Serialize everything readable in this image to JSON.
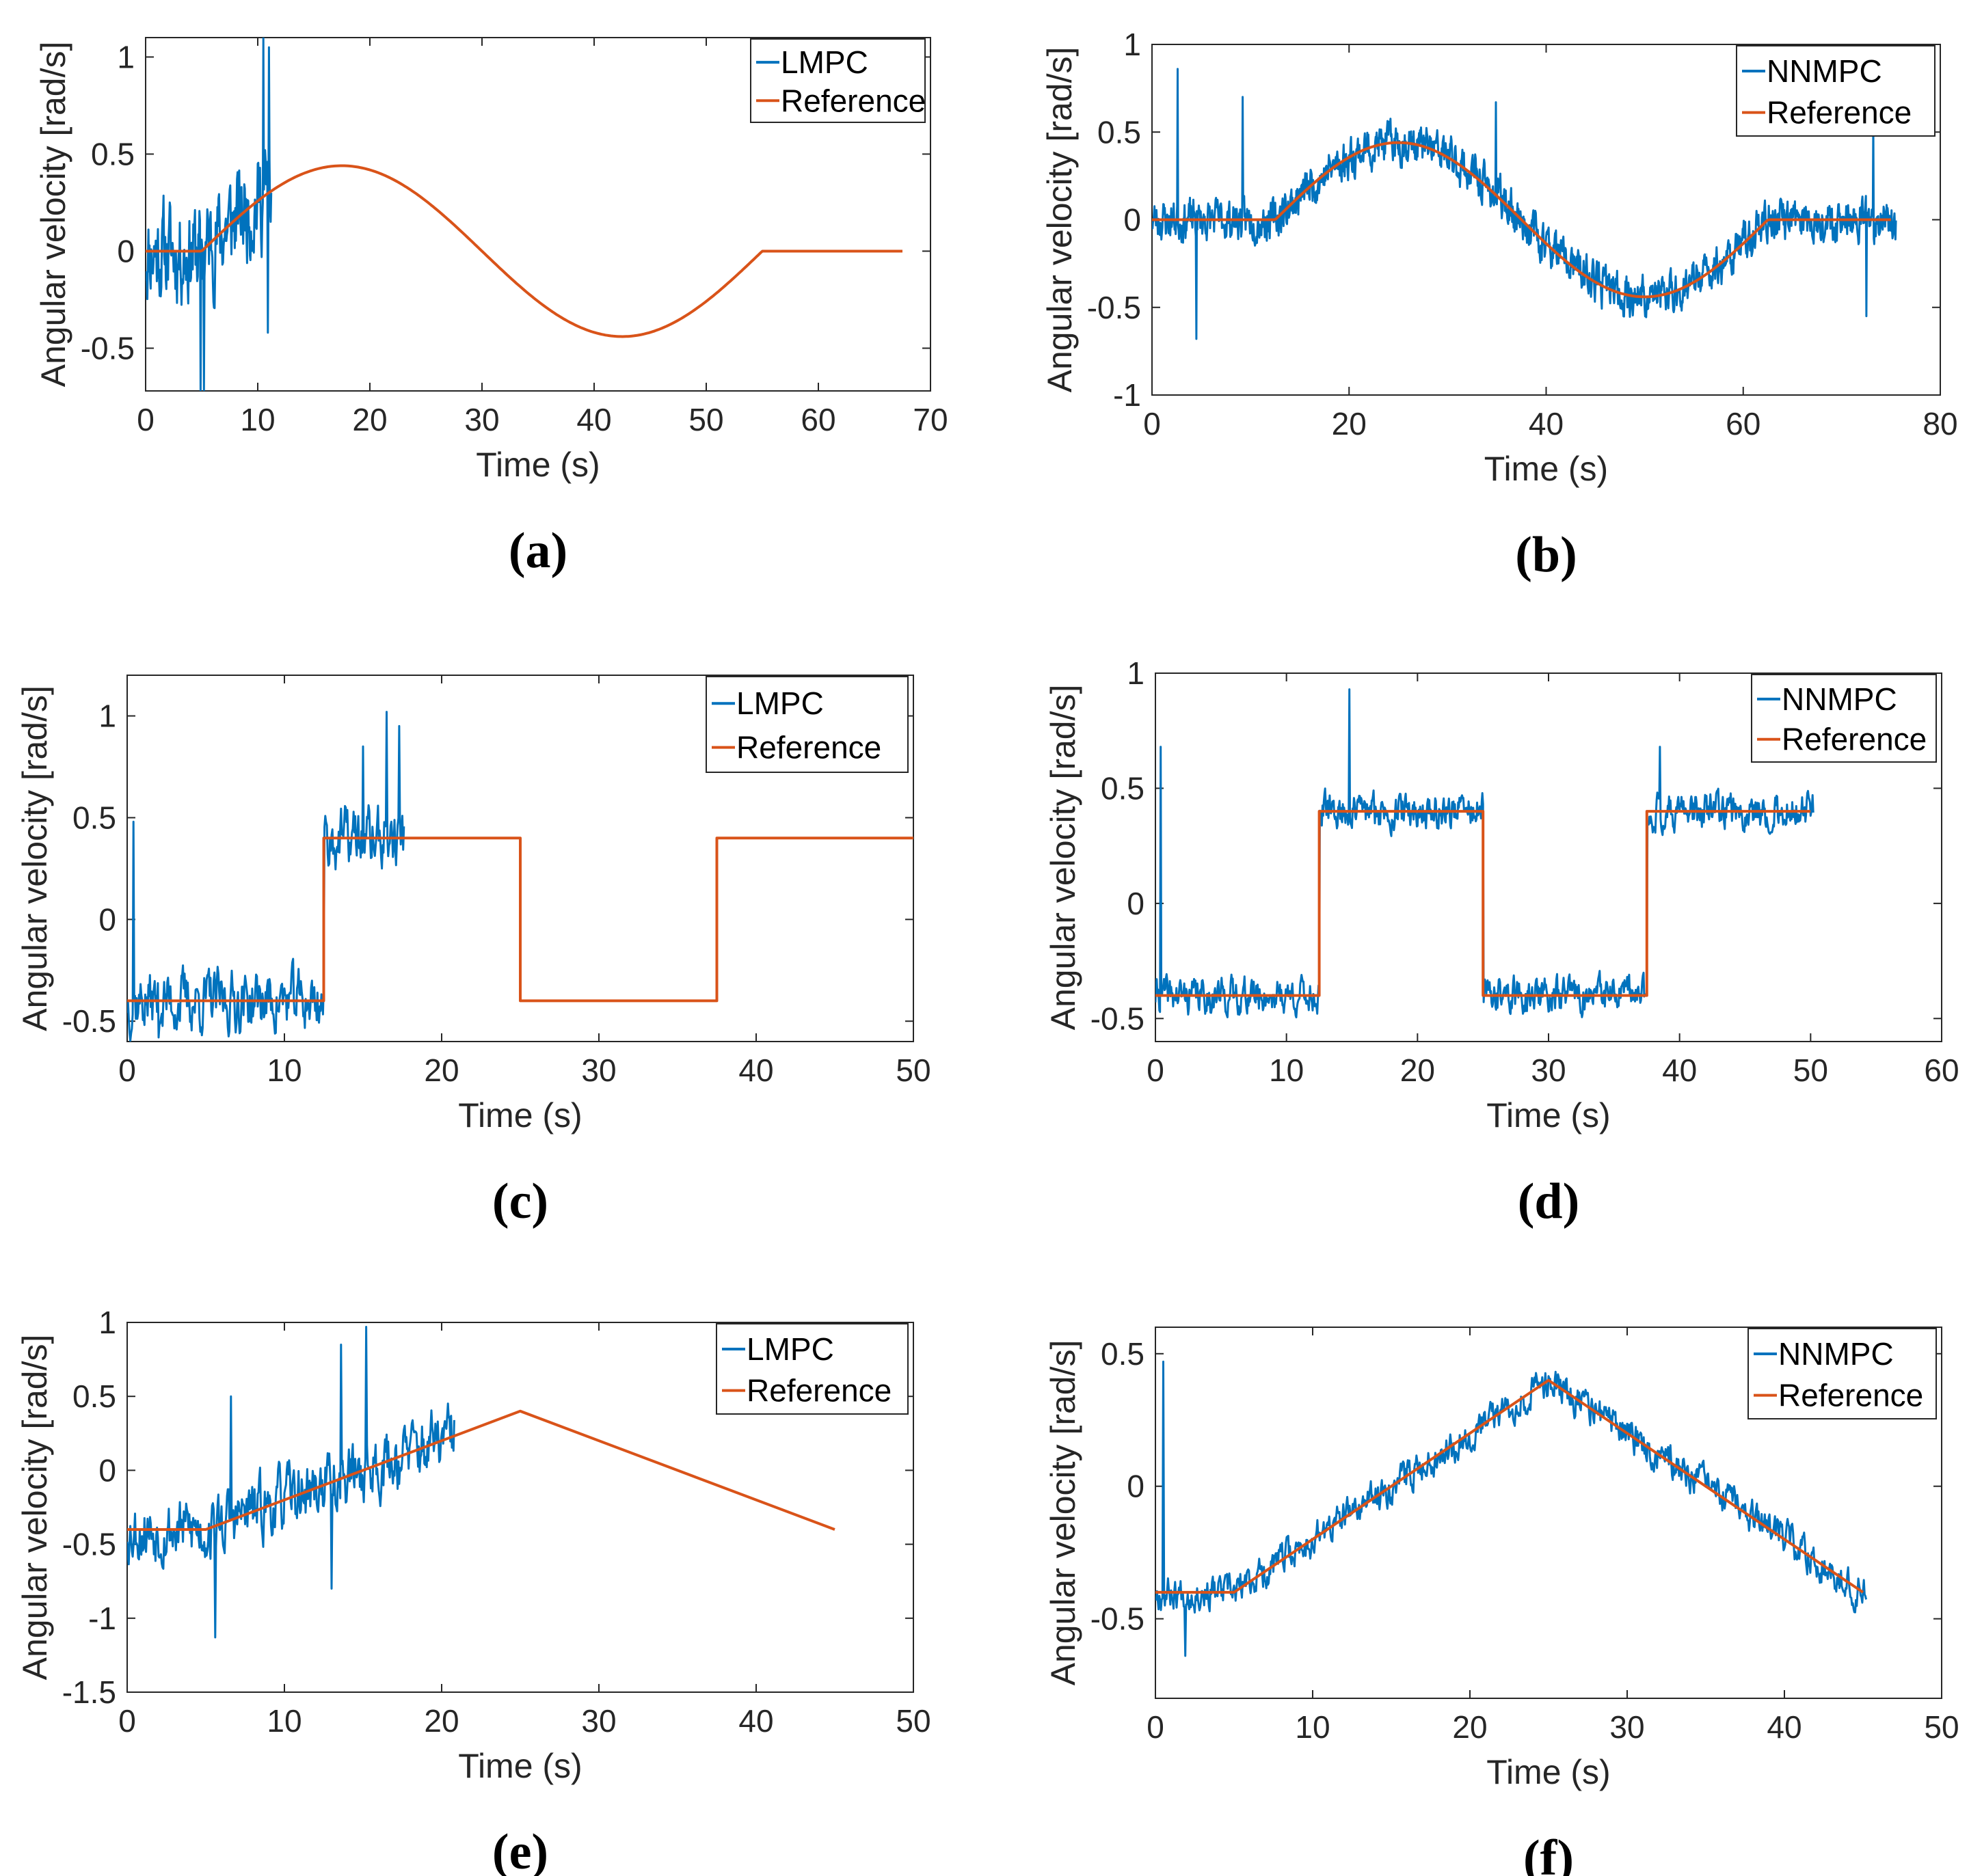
{
  "colors": {
    "measured": "#0072BD",
    "reference": "#D95319"
  },
  "chart_data": [
    {
      "type": "line",
      "caption": "(a)",
      "xlabel": "Time (s)",
      "ylabel": "Angular velocity [rad/s]",
      "xlim": [
        0,
        70
      ],
      "ylim": [
        -0.72,
        1.1
      ],
      "xticks": [
        0,
        10,
        20,
        30,
        40,
        50,
        60,
        70
      ],
      "yticks": [
        -0.5,
        0,
        0.5,
        1
      ],
      "ytick_labels": [
        "-0.5",
        "0",
        "0.5",
        "1"
      ],
      "legend_position": "top-right",
      "series": [
        {
          "name": "LMPC",
          "role": "measured",
          "noisy": true,
          "seed": 11,
          "t_end": 11.2,
          "noise": 0.2,
          "spikes": [
            [
              10.5,
              1.1
            ],
            [
              11.0,
              1.05
            ],
            [
              4.9,
              -0.72
            ],
            [
              5.2,
              -0.72
            ],
            [
              10.9,
              -0.42
            ]
          ]
        },
        {
          "name": "Reference",
          "role": "reference",
          "kind": "sine",
          "t_start": 5,
          "t_end": 55,
          "amplitude": 0.44,
          "x_end": 67.5
        }
      ]
    },
    {
      "type": "line",
      "caption": "(b)",
      "xlabel": "Time (s)",
      "ylabel": "Angular velocity [rad/s]",
      "xlim": [
        0,
        80
      ],
      "ylim": [
        -1,
        1
      ],
      "xticks": [
        0,
        20,
        40,
        60,
        80
      ],
      "yticks": [
        -1,
        -0.5,
        0,
        0.5,
        1
      ],
      "ytick_labels": [
        "-1",
        "-0.5",
        "0",
        "0.5",
        "1"
      ],
      "legend_position": "top-right",
      "series": [
        {
          "name": "NNMPC",
          "role": "measured",
          "noisy": true,
          "seed": 23,
          "t_end": 75.5,
          "noise": 0.09,
          "spikes": [
            [
              2.6,
              0.86
            ],
            [
              9.2,
              0.7
            ],
            [
              34.9,
              0.67
            ],
            [
              4.5,
              -0.68
            ],
            [
              73.2,
              0.55
            ],
            [
              72.5,
              -0.55
            ]
          ]
        },
        {
          "name": "Reference",
          "role": "reference",
          "kind": "sine",
          "t_start": 12.5,
          "t_end": 62.5,
          "amplitude": 0.44,
          "x_end": 75
        }
      ]
    },
    {
      "type": "line",
      "caption": "(c)",
      "xlabel": "Time (s)",
      "ylabel": "Angular velocity [rad/s]",
      "xlim": [
        0,
        50
      ],
      "ylim": [
        -0.6,
        1.2
      ],
      "xticks": [
        0,
        10,
        20,
        30,
        40,
        50
      ],
      "yticks": [
        -0.5,
        0,
        0.5,
        1
      ],
      "ytick_labels": [
        "-0.5",
        "0",
        "0.5",
        "1"
      ],
      "legend_position": "top-right",
      "series": [
        {
          "name": "LMPC",
          "role": "measured",
          "noisy": true,
          "seed": 37,
          "t_end": 17.6,
          "noise": 0.12,
          "spikes": [
            [
              0.4,
              0.48
            ],
            [
              16.5,
              1.02
            ],
            [
              17.3,
              0.95
            ],
            [
              15.0,
              0.85
            ],
            [
              2.0,
              -0.58
            ]
          ]
        },
        {
          "name": "Reference",
          "role": "reference",
          "kind": "step",
          "x": [
            0,
            12.5,
            12.5,
            25,
            25,
            37.5,
            37.5,
            50
          ],
          "y": [
            -0.4,
            -0.4,
            0.4,
            0.4,
            -0.4,
            -0.4,
            0.4,
            0.4
          ]
        }
      ]
    },
    {
      "type": "line",
      "caption": "(d)",
      "xlabel": "Time (s)",
      "ylabel": "Angular velocity [rad/s]",
      "xlim": [
        0,
        60
      ],
      "ylim": [
        -0.6,
        1
      ],
      "xticks": [
        0,
        10,
        20,
        30,
        40,
        50,
        60
      ],
      "yticks": [
        -0.5,
        0,
        0.5,
        1
      ],
      "ytick_labels": [
        "-0.5",
        "0",
        "0.5",
        "1"
      ],
      "legend_position": "top-right",
      "series": [
        {
          "name": "NNMPC",
          "role": "measured",
          "noisy": true,
          "seed": 41,
          "t_end": 50.2,
          "noise": 0.06,
          "spikes": [
            [
              0.4,
              0.68
            ],
            [
              14.8,
              0.93
            ],
            [
              38.5,
              0.68
            ]
          ]
        },
        {
          "name": "Reference",
          "role": "reference",
          "kind": "step",
          "x": [
            0,
            12.5,
            12.5,
            25,
            25,
            37.5,
            37.5,
            50
          ],
          "y": [
            -0.4,
            -0.4,
            0.4,
            0.4,
            -0.4,
            -0.4,
            0.4,
            0.4
          ]
        }
      ]
    },
    {
      "type": "line",
      "caption": "(e)",
      "xlabel": "Time (s)",
      "ylabel": "Angular velocity [rad/s]",
      "xlim": [
        0,
        50
      ],
      "ylim": [
        -1.5,
        1
      ],
      "xticks": [
        0,
        10,
        20,
        30,
        40,
        50
      ],
      "yticks": [
        -1.5,
        -1,
        -0.5,
        0,
        0.5,
        1
      ],
      "ytick_labels": [
        "-1.5",
        "-1",
        "-0.5",
        "0",
        "0.5",
        "1"
      ],
      "legend_position": "top-right",
      "series": [
        {
          "name": "LMPC",
          "role": "measured",
          "noisy": true,
          "seed": 53,
          "t_end": 20.8,
          "noise": 0.17,
          "spikes": [
            [
              13.6,
              0.85
            ],
            [
              15.2,
              0.97
            ],
            [
              5.6,
              -1.13
            ],
            [
              6.6,
              0.5
            ],
            [
              13.0,
              -0.8
            ]
          ]
        },
        {
          "name": "Reference",
          "role": "reference",
          "kind": "line",
          "x": [
            0,
            5,
            25,
            45
          ],
          "y": [
            -0.4,
            -0.4,
            0.4,
            -0.4
          ]
        }
      ]
    },
    {
      "type": "line",
      "caption": "(f)",
      "xlabel": "Time (s)",
      "ylabel": "Angular velocity [rad/s]",
      "xlim": [
        0,
        50
      ],
      "ylim": [
        -0.8,
        0.6
      ],
      "xticks": [
        0,
        10,
        20,
        30,
        40,
        50
      ],
      "yticks": [
        -0.5,
        0,
        0.5
      ],
      "ytick_labels": [
        "-0.5",
        "0",
        "0.5"
      ],
      "legend_position": "top-right",
      "series": [
        {
          "name": "NNMPC",
          "role": "measured",
          "noisy": true,
          "seed": 67,
          "t_end": 45.2,
          "noise": 0.05,
          "spikes": [
            [
              0.5,
              0.47
            ],
            [
              1.9,
              -0.64
            ]
          ]
        },
        {
          "name": "Reference",
          "role": "reference",
          "kind": "line",
          "x": [
            0,
            5,
            25,
            45
          ],
          "y": [
            -0.4,
            -0.4,
            0.4,
            -0.4
          ]
        }
      ]
    }
  ]
}
